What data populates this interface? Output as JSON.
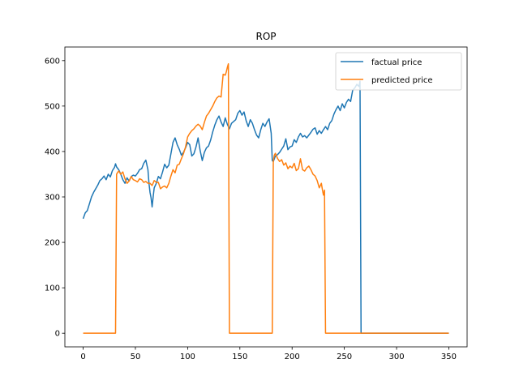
{
  "chart_data": {
    "type": "line",
    "title": "ROP",
    "xlabel": "",
    "ylabel": "",
    "xlim": [
      -17.5,
      367.5
    ],
    "ylim": [
      -30,
      630
    ],
    "xticks": [
      0,
      50,
      100,
      150,
      200,
      250,
      300,
      350
    ],
    "yticks": [
      0,
      100,
      200,
      300,
      400,
      500,
      600
    ],
    "grid": false,
    "legend_position": "top-right",
    "series": [
      {
        "name": "factual price",
        "color": "#1f77b4",
        "points": [
          [
            0,
            252
          ],
          [
            2,
            265
          ],
          [
            4,
            270
          ],
          [
            6,
            285
          ],
          [
            8,
            300
          ],
          [
            10,
            310
          ],
          [
            12,
            318
          ],
          [
            14,
            326
          ],
          [
            16,
            336
          ],
          [
            18,
            340
          ],
          [
            20,
            346
          ],
          [
            22,
            338
          ],
          [
            24,
            350
          ],
          [
            26,
            344
          ],
          [
            28,
            358
          ],
          [
            30,
            365
          ],
          [
            31,
            373
          ],
          [
            32,
            366
          ],
          [
            34,
            360
          ],
          [
            36,
            350
          ],
          [
            38,
            338
          ],
          [
            40,
            330
          ],
          [
            42,
            342
          ],
          [
            44,
            335
          ],
          [
            46,
            345
          ],
          [
            48,
            348
          ],
          [
            50,
            346
          ],
          [
            52,
            352
          ],
          [
            54,
            360
          ],
          [
            56,
            362
          ],
          [
            58,
            374
          ],
          [
            60,
            381
          ],
          [
            62,
            360
          ],
          [
            63,
            330
          ],
          [
            64,
            310
          ],
          [
            65,
            298
          ],
          [
            66,
            278
          ],
          [
            67,
            300
          ],
          [
            68,
            320
          ],
          [
            70,
            330
          ],
          [
            72,
            345
          ],
          [
            74,
            340
          ],
          [
            76,
            355
          ],
          [
            78,
            372
          ],
          [
            80,
            364
          ],
          [
            82,
            370
          ],
          [
            84,
            395
          ],
          [
            86,
            420
          ],
          [
            88,
            430
          ],
          [
            90,
            415
          ],
          [
            92,
            405
          ],
          [
            94,
            392
          ],
          [
            96,
            398
          ],
          [
            98,
            408
          ],
          [
            100,
            420
          ],
          [
            102,
            415
          ],
          [
            104,
            390
          ],
          [
            106,
            395
          ],
          [
            108,
            410
          ],
          [
            110,
            430
          ],
          [
            112,
            402
          ],
          [
            114,
            380
          ],
          [
            116,
            398
          ],
          [
            118,
            408
          ],
          [
            120,
            412
          ],
          [
            122,
            425
          ],
          [
            124,
            443
          ],
          [
            126,
            458
          ],
          [
            128,
            470
          ],
          [
            130,
            478
          ],
          [
            132,
            465
          ],
          [
            134,
            455
          ],
          [
            136,
            474
          ],
          [
            138,
            460
          ],
          [
            140,
            450
          ],
          [
            142,
            462
          ],
          [
            144,
            466
          ],
          [
            146,
            470
          ],
          [
            148,
            484
          ],
          [
            150,
            490
          ],
          [
            152,
            480
          ],
          [
            154,
            487
          ],
          [
            156,
            468
          ],
          [
            158,
            455
          ],
          [
            160,
            470
          ],
          [
            162,
            462
          ],
          [
            164,
            448
          ],
          [
            166,
            436
          ],
          [
            168,
            430
          ],
          [
            170,
            448
          ],
          [
            172,
            462
          ],
          [
            174,
            455
          ],
          [
            176,
            465
          ],
          [
            178,
            472
          ],
          [
            180,
            440
          ],
          [
            181,
            380
          ],
          [
            182,
            378
          ],
          [
            184,
            390
          ],
          [
            186,
            393
          ],
          [
            188,
            398
          ],
          [
            190,
            405
          ],
          [
            192,
            412
          ],
          [
            194,
            428
          ],
          [
            196,
            404
          ],
          [
            198,
            410
          ],
          [
            200,
            412
          ],
          [
            202,
            426
          ],
          [
            204,
            420
          ],
          [
            206,
            432
          ],
          [
            208,
            440
          ],
          [
            210,
            432
          ],
          [
            212,
            435
          ],
          [
            214,
            430
          ],
          [
            216,
            436
          ],
          [
            218,
            442
          ],
          [
            220,
            449
          ],
          [
            222,
            452
          ],
          [
            224,
            438
          ],
          [
            226,
            446
          ],
          [
            228,
            440
          ],
          [
            230,
            448
          ],
          [
            232,
            455
          ],
          [
            234,
            448
          ],
          [
            236,
            462
          ],
          [
            238,
            468
          ],
          [
            240,
            482
          ],
          [
            242,
            492
          ],
          [
            244,
            500
          ],
          [
            246,
            490
          ],
          [
            248,
            505
          ],
          [
            250,
            496
          ],
          [
            252,
            508
          ],
          [
            254,
            515
          ],
          [
            256,
            510
          ],
          [
            258,
            535
          ],
          [
            260,
            540
          ],
          [
            262,
            548
          ],
          [
            264,
            543
          ],
          [
            265,
            555
          ],
          [
            266,
            0
          ],
          [
            268,
            0
          ],
          [
            300,
            0
          ],
          [
            330,
            0
          ],
          [
            350,
            0
          ]
        ]
      },
      {
        "name": "predicted price",
        "color": "#ff7f0e",
        "points": [
          [
            0,
            0
          ],
          [
            30,
            0
          ],
          [
            31,
            0
          ],
          [
            32,
            350
          ],
          [
            33,
            354
          ],
          [
            34,
            357
          ],
          [
            36,
            350
          ],
          [
            38,
            355
          ],
          [
            40,
            340
          ],
          [
            42,
            330
          ],
          [
            44,
            335
          ],
          [
            46,
            345
          ],
          [
            48,
            338
          ],
          [
            50,
            336
          ],
          [
            52,
            333
          ],
          [
            54,
            340
          ],
          [
            56,
            338
          ],
          [
            58,
            332
          ],
          [
            60,
            334
          ],
          [
            62,
            330
          ],
          [
            64,
            330
          ],
          [
            66,
            325
          ],
          [
            68,
            336
          ],
          [
            70,
            332
          ],
          [
            72,
            332
          ],
          [
            74,
            318
          ],
          [
            76,
            322
          ],
          [
            78,
            324
          ],
          [
            80,
            320
          ],
          [
            82,
            330
          ],
          [
            84,
            346
          ],
          [
            86,
            360
          ],
          [
            88,
            353
          ],
          [
            90,
            370
          ],
          [
            92,
            372
          ],
          [
            94,
            384
          ],
          [
            96,
            395
          ],
          [
            98,
            410
          ],
          [
            100,
            432
          ],
          [
            102,
            440
          ],
          [
            104,
            446
          ],
          [
            106,
            450
          ],
          [
            108,
            456
          ],
          [
            110,
            460
          ],
          [
            112,
            456
          ],
          [
            114,
            448
          ],
          [
            116,
            464
          ],
          [
            118,
            478
          ],
          [
            120,
            484
          ],
          [
            122,
            492
          ],
          [
            124,
            500
          ],
          [
            126,
            510
          ],
          [
            128,
            518
          ],
          [
            130,
            522
          ],
          [
            132,
            520
          ],
          [
            134,
            570
          ],
          [
            136,
            568
          ],
          [
            137,
            575
          ],
          [
            138,
            585
          ],
          [
            139,
            593
          ],
          [
            140,
            0
          ],
          [
            150,
            0
          ],
          [
            170,
            0
          ],
          [
            180,
            0
          ],
          [
            181,
            0
          ],
          [
            182,
            380
          ],
          [
            183,
            392
          ],
          [
            184,
            396
          ],
          [
            186,
            385
          ],
          [
            188,
            378
          ],
          [
            190,
            382
          ],
          [
            192,
            370
          ],
          [
            194,
            375
          ],
          [
            196,
            362
          ],
          [
            198,
            368
          ],
          [
            200,
            364
          ],
          [
            202,
            374
          ],
          [
            204,
            358
          ],
          [
            206,
            362
          ],
          [
            208,
            384
          ],
          [
            210,
            360
          ],
          [
            212,
            357
          ],
          [
            214,
            364
          ],
          [
            216,
            368
          ],
          [
            218,
            360
          ],
          [
            220,
            350
          ],
          [
            222,
            346
          ],
          [
            224,
            336
          ],
          [
            226,
            320
          ],
          [
            228,
            330
          ],
          [
            229,
            316
          ],
          [
            230,
            304
          ],
          [
            231,
            315
          ],
          [
            232,
            0
          ],
          [
            250,
            0
          ],
          [
            300,
            0
          ],
          [
            350,
            0
          ]
        ]
      }
    ]
  }
}
